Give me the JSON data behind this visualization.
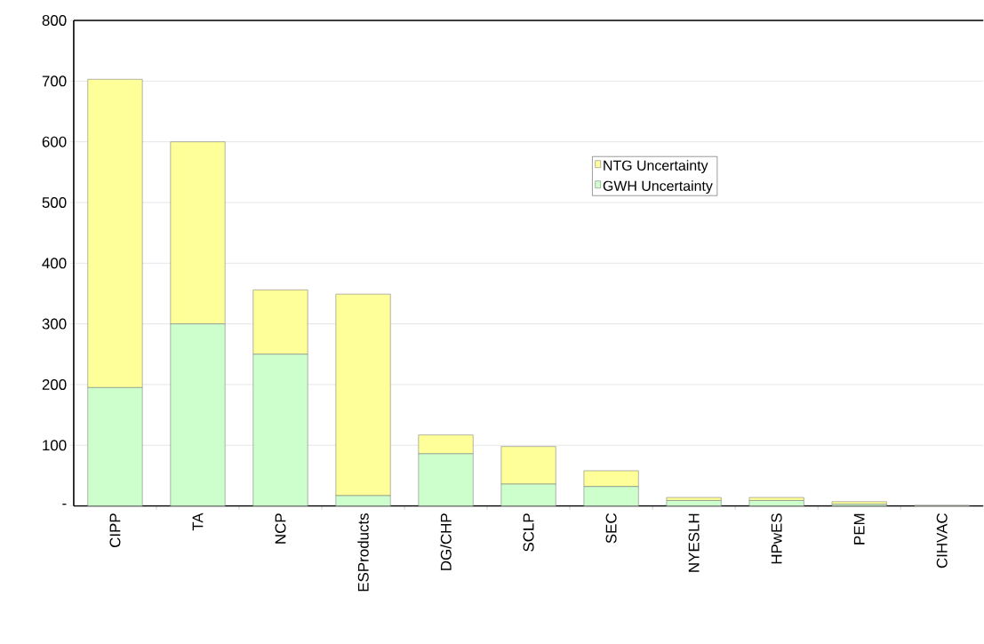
{
  "chart_data": {
    "type": "bar",
    "stacked": true,
    "categories": [
      "CIPP",
      "TA",
      "NCP",
      "ESProducts",
      "DG/CHP",
      "SCLP",
      "SEC",
      "NYESLH",
      "HPwES",
      "PEM",
      "CIHVAC"
    ],
    "series": [
      {
        "name": "GWH Uncertainty",
        "color": "#ccffcc",
        "values": [
          195,
          300,
          250,
          17,
          86,
          36,
          32,
          9,
          9,
          3,
          null
        ]
      },
      {
        "name": "NTG Uncertainty",
        "color": "#ffff99",
        "values": [
          508,
          300,
          106,
          332,
          31,
          62,
          26,
          5,
          5,
          4,
          1
        ]
      }
    ],
    "ylim": [
      0,
      800
    ],
    "yticks": [
      {
        "value": 0,
        "label": "-"
      },
      100,
      200,
      300,
      400,
      500,
      600,
      700,
      800
    ],
    "grid": "y",
    "legend": "top"
  }
}
